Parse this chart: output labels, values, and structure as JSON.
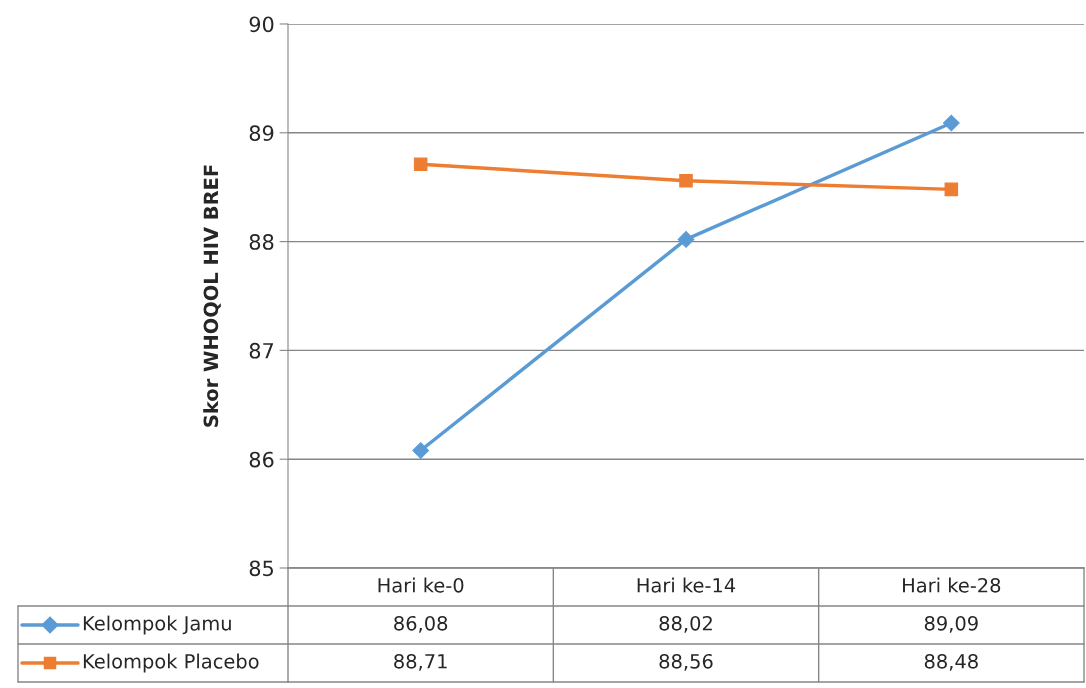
{
  "chart_data": {
    "type": "line",
    "ylabel": "Skor WHOQOL HIV BREF",
    "categories": [
      "Hari ke-0",
      "Hari ke-14",
      "Hari ke-28"
    ],
    "series": [
      {
        "name": "Kelompok Jamu",
        "color": "#5b9bd5",
        "marker": "diamond",
        "values": [
          86.08,
          88.02,
          89.09
        ],
        "value_labels": [
          "86,08",
          "88,02",
          "89,09"
        ]
      },
      {
        "name": "Kelompok Placebo",
        "color": "#ed7d31",
        "marker": "square",
        "values": [
          88.71,
          88.56,
          88.48
        ],
        "value_labels": [
          "88,71",
          "88,56",
          "88,48"
        ]
      }
    ],
    "ylim": [
      85,
      90
    ],
    "yticks": [
      85,
      86,
      87,
      88,
      89,
      90
    ],
    "grid": "y",
    "legend": "bottom",
    "line_style": "solid"
  }
}
